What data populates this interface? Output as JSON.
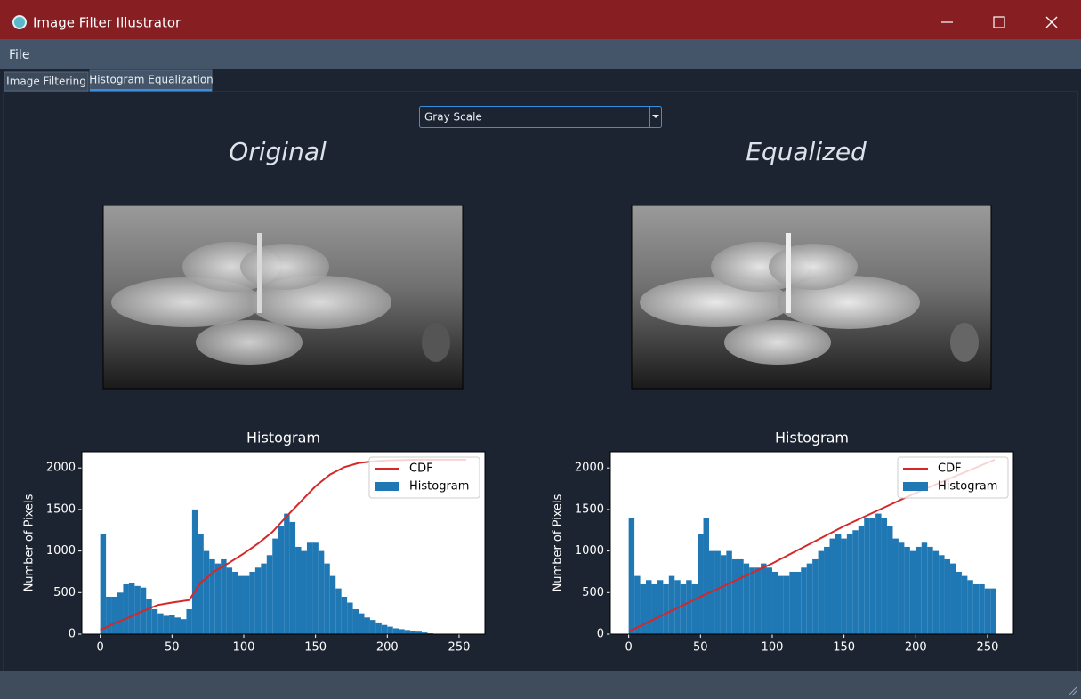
{
  "window": {
    "title": "Image Filter Illustrator"
  },
  "menu": [
    "File"
  ],
  "tabs": [
    "Image Filtering",
    "Histogram Equalization"
  ],
  "dropdown": {
    "selected": "Gray Scale"
  },
  "panels": [
    {
      "heading": "Original"
    },
    {
      "heading": "Equalized"
    }
  ],
  "chart_data": [
    {
      "type": "histogram",
      "title": "Histogram",
      "ylabel": "Number of Pixels",
      "xlim": [
        -12.8,
        268
      ],
      "ylim": [
        0,
        2195
      ],
      "xticks": [
        0,
        50,
        100,
        150,
        200,
        250
      ],
      "yticks": [
        0,
        500,
        1000,
        1500,
        2000
      ],
      "legend": "upper right",
      "series": [
        {
          "name": "CDF",
          "type": "line",
          "color": "#d62728",
          "x": [
            0,
            10,
            20,
            30,
            40,
            50,
            62,
            70,
            80,
            90,
            100,
            110,
            120,
            130,
            140,
            150,
            160,
            170,
            180,
            190,
            200,
            220,
            255
          ],
          "values": [
            50,
            130,
            200,
            280,
            350,
            380,
            410,
            620,
            760,
            860,
            970,
            1090,
            1230,
            1420,
            1600,
            1780,
            1920,
            2010,
            2060,
            2080,
            2090,
            2100,
            2100
          ]
        },
        {
          "name": "Histogram",
          "type": "bar",
          "color": "#1f77b4",
          "bins": [
            0,
            4,
            8,
            12,
            16,
            20,
            24,
            28,
            32,
            36,
            40,
            44,
            48,
            52,
            56,
            60,
            64,
            68,
            72,
            76,
            80,
            84,
            88,
            92,
            96,
            100,
            104,
            108,
            112,
            116,
            120,
            124,
            128,
            132,
            136,
            140,
            144,
            148,
            152,
            156,
            160,
            164,
            168,
            172,
            176,
            180,
            184,
            188,
            192,
            196,
            200,
            204,
            208,
            212,
            216,
            220,
            224,
            228,
            232,
            236,
            240,
            244,
            248,
            252,
            256
          ],
          "values": [
            1200,
            450,
            450,
            500,
            600,
            620,
            580,
            560,
            420,
            300,
            250,
            220,
            230,
            200,
            180,
            300,
            1500,
            1200,
            1000,
            900,
            850,
            900,
            800,
            750,
            700,
            700,
            750,
            800,
            850,
            950,
            1150,
            1300,
            1450,
            1350,
            1050,
            1000,
            1100,
            1100,
            1000,
            850,
            700,
            550,
            450,
            380,
            300,
            250,
            200,
            170,
            140,
            110,
            90,
            70,
            60,
            50,
            40,
            30,
            20,
            10,
            5,
            2,
            0,
            0,
            0,
            0
          ]
        }
      ]
    },
    {
      "type": "histogram",
      "title": "Histogram",
      "ylabel": "Number of Pixels",
      "xlim": [
        -12.8,
        268
      ],
      "ylim": [
        0,
        2195
      ],
      "xticks": [
        0,
        50,
        100,
        150,
        200,
        250
      ],
      "yticks": [
        0,
        500,
        1000,
        1500,
        2000
      ],
      "legend": "upper right",
      "series": [
        {
          "name": "CDF",
          "type": "line",
          "color": "#d62728",
          "x": [
            0,
            50,
            100,
            150,
            200,
            255
          ],
          "values": [
            30,
            450,
            850,
            1300,
            1700,
            2100
          ]
        },
        {
          "name": "Histogram",
          "type": "bar",
          "color": "#1f77b4",
          "bins": [
            0,
            4,
            8,
            12,
            16,
            20,
            24,
            28,
            32,
            36,
            40,
            44,
            48,
            52,
            56,
            60,
            64,
            68,
            72,
            76,
            80,
            84,
            88,
            92,
            96,
            100,
            104,
            108,
            112,
            116,
            120,
            124,
            128,
            132,
            136,
            140,
            144,
            148,
            152,
            156,
            160,
            164,
            168,
            172,
            176,
            180,
            184,
            188,
            192,
            196,
            200,
            204,
            208,
            212,
            216,
            220,
            224,
            228,
            232,
            236,
            240,
            244,
            248,
            252,
            256
          ],
          "values": [
            1400,
            700,
            600,
            650,
            600,
            650,
            600,
            700,
            650,
            600,
            650,
            600,
            1200,
            1400,
            1000,
            1000,
            950,
            1000,
            900,
            900,
            850,
            800,
            800,
            850,
            800,
            750,
            700,
            700,
            750,
            750,
            800,
            850,
            900,
            1000,
            1050,
            1150,
            1200,
            1150,
            1200,
            1250,
            1300,
            1400,
            1400,
            1450,
            1400,
            1300,
            1150,
            1100,
            1050,
            1000,
            1050,
            1100,
            1050,
            1000,
            950,
            900,
            850,
            750,
            700,
            650,
            600,
            600,
            550,
            550
          ]
        }
      ]
    }
  ]
}
